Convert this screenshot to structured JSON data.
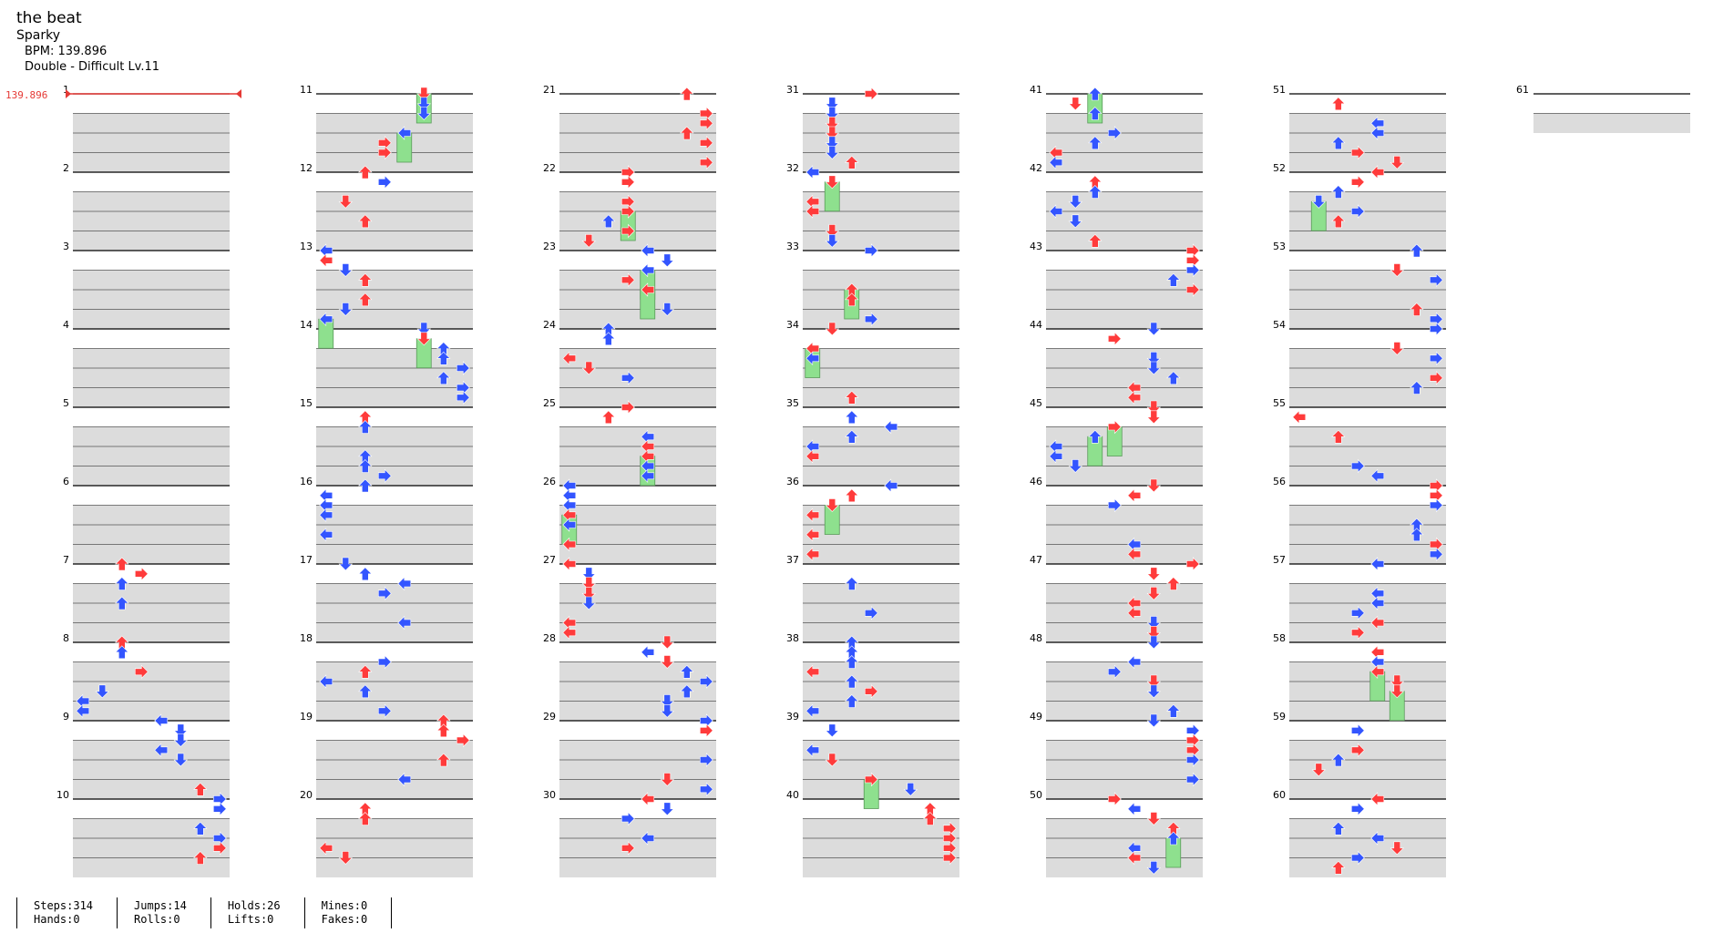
{
  "song": {
    "title": "the beat",
    "artist": "Sparky",
    "bpm_line": "BPM: 139.896",
    "chart_line": "Double - Difficult Lv.11"
  },
  "bpm_marker": "139.896",
  "measure_count": 61,
  "measures_per_column": 10,
  "colors": {
    "left_note": "#3355ff",
    "right_note": "#ff3b3b",
    "hold_body": "#8ee08e",
    "mine": "#f5d400",
    "beat_band": "#dcdcdc",
    "bpm_marker": "#e53935"
  },
  "note_directions": [
    "left",
    "down",
    "up",
    "right",
    "left",
    "down",
    "up",
    "right"
  ],
  "stats": [
    [
      "Steps:314",
      "Hands:0"
    ],
    [
      "Jumps:14",
      "Rolls:0"
    ],
    [
      "Holds:26",
      "Lifts:0"
    ],
    [
      "Mines:0",
      "Fakes:0"
    ]
  ]
}
